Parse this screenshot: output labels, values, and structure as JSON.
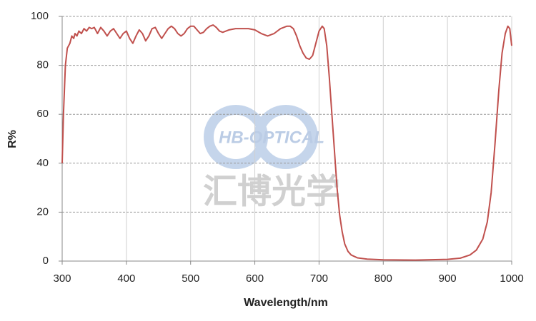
{
  "chart_data": {
    "type": "line",
    "xlabel": "Wavelength/nm",
    "ylabel": "R%",
    "watermark": {
      "logo": "HB-OPTICAL",
      "name": "汇博光学"
    },
    "x": [
      300,
      302,
      305,
      308,
      312,
      315,
      318,
      320,
      323,
      326,
      330,
      334,
      338,
      342,
      346,
      350,
      355,
      360,
      365,
      370,
      375,
      380,
      385,
      390,
      395,
      400,
      405,
      410,
      415,
      420,
      425,
      430,
      435,
      440,
      445,
      450,
      455,
      460,
      465,
      470,
      475,
      480,
      485,
      490,
      495,
      500,
      505,
      510,
      515,
      520,
      525,
      530,
      535,
      540,
      545,
      550,
      560,
      570,
      580,
      590,
      600,
      610,
      620,
      630,
      640,
      650,
      655,
      660,
      665,
      670,
      675,
      680,
      685,
      690,
      695,
      700,
      705,
      708,
      712,
      716,
      720,
      724,
      728,
      732,
      736,
      740,
      745,
      750,
      760,
      775,
      800,
      850,
      900,
      920,
      935,
      945,
      955,
      962,
      968,
      974,
      980,
      985,
      990,
      994,
      997,
      1000
    ],
    "series": [
      {
        "name": "R%",
        "color": "#c0504d",
        "values": [
          40,
          60,
          80,
          87,
          89,
          92,
          91,
          93,
          92,
          94,
          93,
          95,
          94,
          95.5,
          95,
          95.5,
          93,
          95.5,
          94,
          92,
          94,
          95,
          93,
          91,
          93,
          94,
          91,
          89,
          92,
          94.5,
          93,
          90,
          92,
          95,
          95.5,
          93,
          91,
          93,
          95,
          96,
          95,
          93,
          92,
          93,
          95,
          96,
          96,
          94.5,
          93,
          93.5,
          95,
          96,
          96.5,
          95.5,
          94,
          93.5,
          94.5,
          95,
          95,
          95,
          94.5,
          93,
          92,
          93,
          95,
          96,
          96,
          95,
          92,
          88,
          85,
          83,
          82.5,
          84,
          89,
          94,
          96,
          95,
          88,
          75,
          60,
          45,
          30,
          19,
          12,
          7,
          4,
          2.5,
          1.3,
          0.8,
          0.5,
          0.4,
          0.7,
          1.2,
          2.5,
          4.5,
          9,
          16,
          28,
          48,
          70,
          85,
          93,
          96,
          95,
          88
        ]
      }
    ],
    "xlim": [
      300,
      1000
    ],
    "xticks": [
      300,
      400,
      500,
      600,
      700,
      800,
      900,
      1000
    ],
    "ylim": [
      0,
      100
    ],
    "yticks": [
      0,
      20,
      40,
      60,
      80,
      100
    ],
    "grid": true
  }
}
